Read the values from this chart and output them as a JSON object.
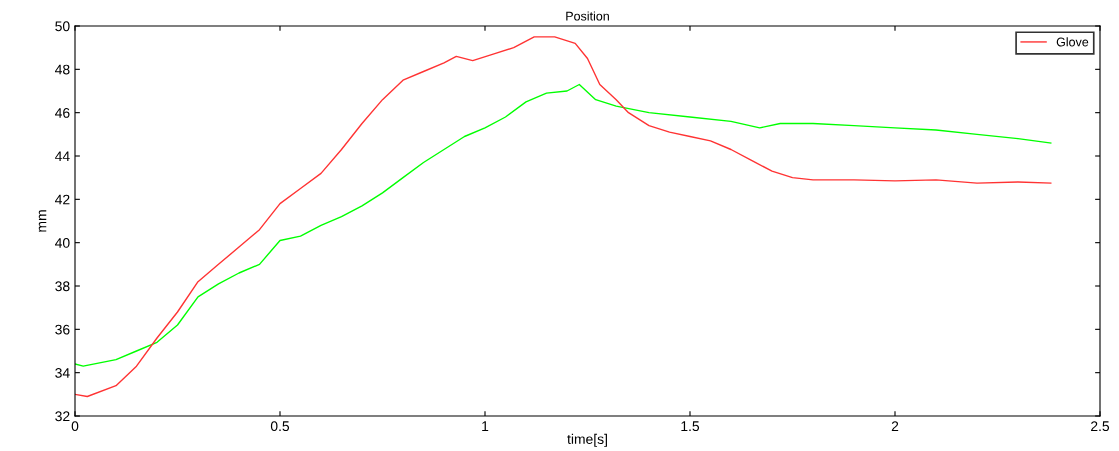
{
  "chart_data": {
    "type": "line",
    "title": "Position",
    "xlabel": "time[s]",
    "ylabel": "mm",
    "xlim": [
      0,
      2.5
    ],
    "xticks": [
      0,
      0.5,
      1,
      1.5,
      2,
      2.5
    ],
    "ylim": [
      32,
      50
    ],
    "yticks": [
      32,
      34,
      36,
      38,
      40,
      42,
      44,
      46,
      48,
      50
    ],
    "grid": false,
    "legend": "top right",
    "line_style": "solid",
    "series": [
      {
        "color": "#00ff00",
        "x": [
          0,
          0.02,
          0.1,
          0.15,
          0.2,
          0.25,
          0.3,
          0.35,
          0.4,
          0.45,
          0.5,
          0.55,
          0.6,
          0.65,
          0.7,
          0.75,
          0.8,
          0.85,
          0.9,
          0.95,
          1.0,
          1.05,
          1.1,
          1.15,
          1.2,
          1.23,
          1.27,
          1.32,
          1.4,
          1.5,
          1.6,
          1.67,
          1.72,
          1.8,
          1.9,
          2.0,
          2.1,
          2.2,
          2.3,
          2.38
        ],
        "values": [
          34.4,
          34.3,
          34.6,
          35.0,
          35.4,
          36.2,
          37.5,
          38.1,
          38.6,
          39.0,
          40.1,
          40.3,
          40.8,
          41.2,
          41.7,
          42.3,
          43.0,
          43.7,
          44.3,
          44.9,
          45.3,
          45.8,
          46.5,
          46.9,
          47.0,
          47.3,
          46.6,
          46.3,
          46.0,
          45.8,
          45.6,
          45.3,
          45.5,
          45.5,
          45.4,
          45.3,
          45.2,
          45.0,
          44.8,
          44.6
        ]
      },
      {
        "name": "Glove",
        "color": "#ff3333",
        "x": [
          0,
          0.03,
          0.1,
          0.15,
          0.2,
          0.25,
          0.3,
          0.35,
          0.4,
          0.45,
          0.5,
          0.55,
          0.6,
          0.65,
          0.7,
          0.75,
          0.8,
          0.85,
          0.9,
          0.93,
          0.97,
          1.02,
          1.07,
          1.12,
          1.17,
          1.22,
          1.25,
          1.28,
          1.32,
          1.35,
          1.4,
          1.45,
          1.5,
          1.55,
          1.6,
          1.65,
          1.7,
          1.75,
          1.8,
          1.9,
          2.0,
          2.1,
          2.2,
          2.3,
          2.38
        ],
        "values": [
          33.0,
          32.9,
          33.4,
          34.3,
          35.6,
          36.8,
          38.2,
          39.0,
          39.8,
          40.6,
          41.8,
          42.5,
          43.2,
          44.3,
          45.5,
          46.6,
          47.5,
          47.9,
          48.3,
          48.6,
          48.4,
          48.7,
          49.0,
          49.5,
          49.5,
          49.2,
          48.5,
          47.3,
          46.6,
          46.0,
          45.4,
          45.1,
          44.9,
          44.7,
          44.3,
          43.8,
          43.3,
          43.0,
          42.9,
          42.9,
          42.85,
          42.9,
          42.75,
          42.8,
          42.75
        ]
      }
    ]
  }
}
